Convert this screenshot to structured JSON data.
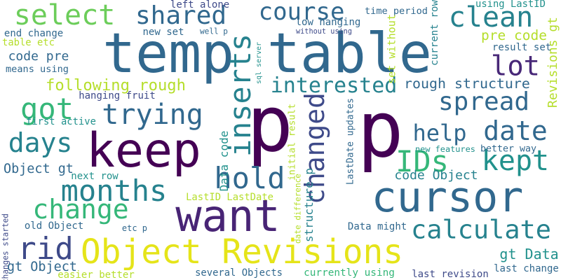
{
  "words": [
    {
      "text": "temp table",
      "color": "#31688e"
    },
    {
      "text": "p",
      "color": "#440154"
    },
    {
      "text": "p",
      "color": "#440154"
    },
    {
      "text": "keep",
      "color": "#440154"
    },
    {
      "text": "cursor",
      "color": "#31688e"
    },
    {
      "text": "want",
      "color": "#482475"
    },
    {
      "text": "Object Revisions",
      "color": "#e5e419"
    },
    {
      "text": "course",
      "color": "#31688e"
    },
    {
      "text": "select",
      "color": "#6ccd5a"
    },
    {
      "text": "shared",
      "color": "#31688e"
    },
    {
      "text": "clean",
      "color": "#26828e"
    },
    {
      "text": "lot",
      "color": "#482878"
    },
    {
      "text": "got",
      "color": "#35b779"
    },
    {
      "text": "trying",
      "color": "#31688e"
    },
    {
      "text": "spread",
      "color": "#31688e"
    },
    {
      "text": "inserts",
      "color": "#26828e"
    },
    {
      "text": "interested",
      "color": "#26828e"
    },
    {
      "text": "changed",
      "color": "#3e4a89"
    },
    {
      "text": "date",
      "color": "#31688e"
    },
    {
      "text": "help",
      "color": "#31688e"
    },
    {
      "text": "days",
      "color": "#26828e"
    },
    {
      "text": "hold",
      "color": "#31688e"
    },
    {
      "text": "IDs",
      "color": "#35b779"
    },
    {
      "text": "kept",
      "color": "#21918c"
    },
    {
      "text": "months",
      "color": "#26828e"
    },
    {
      "text": "change",
      "color": "#35b779"
    },
    {
      "text": "calculate",
      "color": "#26828e"
    },
    {
      "text": "rid",
      "color": "#3e4a89"
    },
    {
      "text": "Revisions gt",
      "color": "#b5de2b"
    },
    {
      "text": "following rough",
      "color": "#b5de2b"
    },
    {
      "text": "rough structure",
      "color": "#31688e"
    },
    {
      "text": "pre code",
      "color": "#b5de2b"
    },
    {
      "text": "code Object",
      "color": "#26828e"
    },
    {
      "text": "structure p",
      "color": "#26828e"
    },
    {
      "text": "Data code",
      "color": "#21918c"
    },
    {
      "text": "gt Data",
      "color": "#21918c"
    },
    {
      "text": "Object gt",
      "color": "#31688e"
    },
    {
      "text": "gt Object",
      "color": "#31688e"
    },
    {
      "text": "several Objects",
      "color": "#31688e"
    },
    {
      "text": "last revision",
      "color": "#3e4a89"
    },
    {
      "text": "last change",
      "color": "#31688e"
    },
    {
      "text": "currently using",
      "color": "#35b779"
    },
    {
      "text": "easier better",
      "color": "#b5de2b"
    },
    {
      "text": "code pre",
      "color": "#31688e"
    },
    {
      "text": "means using",
      "color": "#31688e"
    },
    {
      "text": "end change",
      "color": "#31688e"
    },
    {
      "text": "table etc",
      "color": "#b5de2b"
    },
    {
      "text": "new set",
      "color": "#31688e"
    },
    {
      "text": "left alone",
      "color": "#3e4a89"
    },
    {
      "text": "low hanging",
      "color": "#31688e"
    },
    {
      "text": "time period",
      "color": "#31688e"
    },
    {
      "text": "using LastID",
      "color": "#21918c"
    },
    {
      "text": "without using",
      "color": "#3e4a89"
    },
    {
      "text": "well p",
      "color": "#31688e"
    },
    {
      "text": "sql server",
      "color": "#21918c"
    },
    {
      "text": "hanging fruit",
      "color": "#3e4a89"
    },
    {
      "text": "first active",
      "color": "#21918c"
    },
    {
      "text": "next row",
      "color": "#21918c"
    },
    {
      "text": "changes started",
      "color": "#3e4a89"
    },
    {
      "text": "old Object",
      "color": "#31688e"
    },
    {
      "text": "etc p",
      "color": "#31688e"
    },
    {
      "text": "Data might",
      "color": "#31688e"
    },
    {
      "text": "LastID LastDate",
      "color": "#b5de2b"
    },
    {
      "text": "initial result",
      "color": "#b5de2b"
    },
    {
      "text": "date difference",
      "color": "#b5de2b"
    },
    {
      "text": "LastDate updates",
      "color": "#31688e"
    },
    {
      "text": "set without",
      "color": "#b5de2b"
    },
    {
      "text": "current row",
      "color": "#26828e"
    },
    {
      "text": "result set",
      "color": "#31688e"
    },
    {
      "text": "new features",
      "color": "#21918c"
    },
    {
      "text": "better way",
      "color": "#31688e"
    }
  ]
}
